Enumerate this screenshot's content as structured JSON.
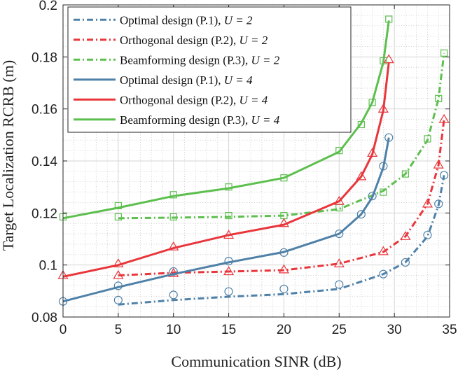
{
  "chart_data": {
    "type": "line",
    "title": "",
    "xlabel": "Communication SINR (dB)",
    "ylabel": "Target Localization RCRB (m)",
    "xlim": [
      0,
      35
    ],
    "ylim": [
      0.08,
      0.2
    ],
    "xticks": [
      0,
      5,
      10,
      15,
      20,
      25,
      30,
      35
    ],
    "yticks": [
      0.08,
      0.1,
      0.12,
      0.14,
      0.16,
      0.18,
      0.2
    ],
    "xtick_labels": [
      "0",
      "5",
      "10",
      "15",
      "20",
      "25",
      "30",
      "35"
    ],
    "ytick_labels": [
      "0.08",
      "0.1",
      "0.12",
      "0.14",
      "0.16",
      "0.18",
      "0.2"
    ],
    "grid": true,
    "minor_grid": true,
    "legend_position": "top-left",
    "colors": {
      "blue": "#4f81a8",
      "red": "#e8363c",
      "green": "#5dbf4e"
    },
    "series": [
      {
        "name": "Optimal design (P.1), U = 2",
        "legend_main": "Optimal design (P.1), ",
        "legend_var": "U",
        "legend_eq": " = 2",
        "color": "blue",
        "dash": "dashdot",
        "marker": "circle",
        "line": {
          "x": [
            5,
            10,
            15,
            20,
            25,
            29,
            31,
            33,
            34,
            34.5
          ],
          "y": [
            0.0848,
            0.0865,
            0.0878,
            0.0888,
            0.0908,
            0.0965,
            0.101,
            0.111,
            0.123,
            0.1345
          ]
        },
        "markers": {
          "x": [
            5,
            10,
            15,
            20,
            25,
            29,
            31,
            33,
            34,
            34.5
          ],
          "y": [
            0.0865,
            0.0885,
            0.0898,
            0.0908,
            0.0925,
            0.0965,
            0.101,
            0.1115,
            0.1235,
            0.1345
          ]
        }
      },
      {
        "name": "Orthogonal design (P.2), U = 2",
        "legend_main": "Orthogonal design (P.2), ",
        "legend_var": "U",
        "legend_eq": " = 2",
        "color": "red",
        "dash": "dashdot",
        "marker": "triangle",
        "line": {
          "x": [
            5,
            10,
            15,
            20,
            25,
            29,
            31,
            33,
            34,
            34.5
          ],
          "y": [
            0.096,
            0.097,
            0.0975,
            0.098,
            0.1005,
            0.105,
            0.111,
            0.1235,
            0.1385,
            0.156
          ]
        },
        "markers": {
          "x": [
            5,
            10,
            15,
            20,
            25,
            29,
            31,
            33,
            34,
            34.5
          ],
          "y": [
            0.096,
            0.0968,
            0.0975,
            0.0982,
            0.1005,
            0.1052,
            0.111,
            0.1235,
            0.1385,
            0.156
          ]
        }
      },
      {
        "name": "Beamforming design (P.3), U = 2",
        "legend_main": "Beamforming design (P.3), ",
        "legend_var": "U",
        "legend_eq": " = 2",
        "color": "green",
        "dash": "dashdot",
        "marker": "square",
        "line": {
          "x": [
            5,
            10,
            15,
            20,
            25,
            29,
            31,
            33,
            34,
            34.5
          ],
          "y": [
            0.118,
            0.1182,
            0.1185,
            0.119,
            0.1215,
            0.1285,
            0.135,
            0.148,
            0.164,
            0.1815
          ]
        },
        "markers": {
          "x": [
            5,
            10,
            15,
            20,
            25,
            29,
            31,
            33,
            34,
            34.5
          ],
          "y": [
            0.1185,
            0.1185,
            0.119,
            0.119,
            0.122,
            0.128,
            0.135,
            0.1485,
            0.164,
            0.1815
          ]
        }
      },
      {
        "name": "Optimal design (P.1), U = 4",
        "legend_main": "Optimal design (P.1), ",
        "legend_var": "U",
        "legend_eq": " = 4",
        "color": "blue",
        "dash": "solid",
        "marker": "circle",
        "line": {
          "x": [
            0,
            5,
            10,
            15,
            20,
            25,
            27,
            28,
            29,
            29.5
          ],
          "y": [
            0.086,
            0.0915,
            0.0965,
            0.101,
            0.105,
            0.112,
            0.1195,
            0.126,
            0.1375,
            0.149
          ]
        },
        "markers": {
          "x": [
            0,
            5,
            10,
            15,
            20,
            25,
            27,
            28,
            29,
            29.5
          ],
          "y": [
            0.086,
            0.092,
            0.0975,
            0.1015,
            0.1048,
            0.112,
            0.1195,
            0.1265,
            0.138,
            0.149
          ]
        }
      },
      {
        "name": "Orthogonal design (P.2), U = 4",
        "legend_main": "Orthogonal design (P.2), ",
        "legend_var": "U",
        "legend_eq": " = 4",
        "color": "red",
        "dash": "solid",
        "marker": "triangle",
        "line": {
          "x": [
            0,
            5,
            10,
            15,
            20,
            25,
            27,
            28,
            29,
            29.5
          ],
          "y": [
            0.0955,
            0.1,
            0.1065,
            0.1115,
            0.1155,
            0.1245,
            0.134,
            0.1425,
            0.1595,
            0.178
          ]
        },
        "markers": {
          "x": [
            0,
            5,
            10,
            15,
            20,
            25,
            27,
            28,
            29,
            29.5
          ],
          "y": [
            0.096,
            0.1005,
            0.107,
            0.1115,
            0.116,
            0.1245,
            0.134,
            0.143,
            0.16,
            0.179
          ]
        }
      },
      {
        "name": "Beamforming design (P.3), U = 4",
        "legend_main": "Beamforming design (P.3), ",
        "legend_var": "U",
        "legend_eq": " = 4",
        "color": "green",
        "dash": "solid",
        "marker": "square",
        "line": {
          "x": [
            0,
            5,
            10,
            15,
            20,
            25,
            27,
            28,
            29,
            29.5
          ],
          "y": [
            0.118,
            0.122,
            0.1265,
            0.1295,
            0.1335,
            0.1435,
            0.1545,
            0.1625,
            0.178,
            0.194
          ]
        },
        "markers": {
          "x": [
            0,
            5,
            10,
            15,
            20,
            25,
            27,
            28,
            29,
            29.5
          ],
          "y": [
            0.1185,
            0.1228,
            0.127,
            0.13,
            0.1335,
            0.144,
            0.154,
            0.1625,
            0.1785,
            0.1945
          ]
        }
      }
    ]
  }
}
